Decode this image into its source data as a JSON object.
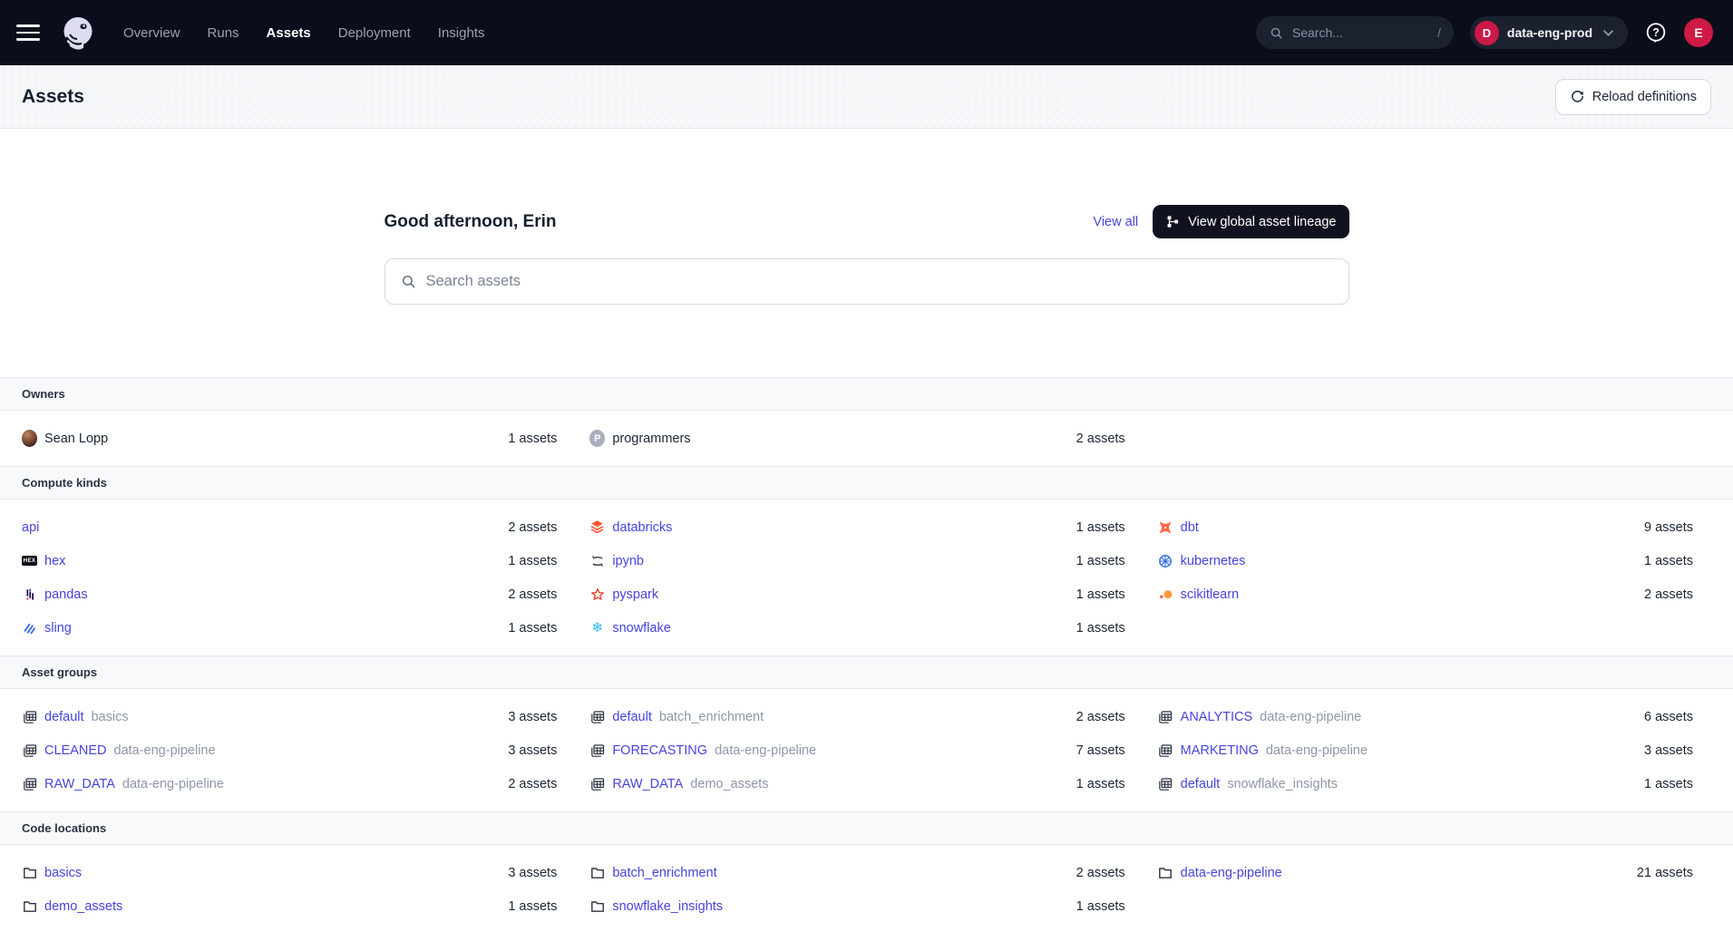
{
  "topnav": {
    "nav_items": [
      {
        "label": "Overview",
        "active": false
      },
      {
        "label": "Runs",
        "active": false
      },
      {
        "label": "Assets",
        "active": true
      },
      {
        "label": "Deployment",
        "active": false
      },
      {
        "label": "Insights",
        "active": false
      }
    ],
    "search_placeholder": "Search...",
    "search_shortcut": "/",
    "deployment": {
      "initial": "D",
      "name": "data-eng-prod"
    },
    "user_initial": "E"
  },
  "page_header": {
    "title": "Assets",
    "reload_button": "Reload definitions"
  },
  "hero": {
    "greeting": "Good afternoon, Erin",
    "view_all": "View all",
    "lineage_button": "View global asset lineage",
    "search_placeholder": "Search assets"
  },
  "colors": {
    "accent": "#4744DE",
    "nav_bg": "#0A0D1A",
    "badge_red": "#CB1A47",
    "count_text": "#1B2633",
    "snowflake_blue": "#29B5E8",
    "databricks_orange": "#FF5430",
    "dbt_orange": "#FF6A45",
    "kubernetes_blue": "#3371E3",
    "pyspark_red": "#E8492C",
    "scikit_orange": "#F89939",
    "sling_blue": "#3E6FD9"
  },
  "sections": [
    {
      "title": "Owners",
      "items": [
        {
          "icon": "user-photo",
          "label": "Sean Lopp",
          "suffix": "",
          "count": "1 assets",
          "link": false
        },
        {
          "icon": "team-badge",
          "badge": "P",
          "label": "programmers",
          "suffix": "",
          "count": "2 assets",
          "link": false
        }
      ]
    },
    {
      "title": "Compute kinds",
      "items": [
        {
          "icon": null,
          "label": "api",
          "suffix": "",
          "count": "2 assets",
          "link": true
        },
        {
          "icon": "databricks",
          "label": "databricks",
          "suffix": "",
          "count": "1 assets",
          "link": true
        },
        {
          "icon": "dbt",
          "label": "dbt",
          "suffix": "",
          "count": "9 assets",
          "link": true
        },
        {
          "icon": "hex",
          "label": "hex",
          "suffix": "",
          "count": "1 assets",
          "link": true
        },
        {
          "icon": "ipynb",
          "label": "ipynb",
          "suffix": "",
          "count": "1 assets",
          "link": true
        },
        {
          "icon": "kubernetes",
          "label": "kubernetes",
          "suffix": "",
          "count": "1 assets",
          "link": true
        },
        {
          "icon": "pandas",
          "label": "pandas",
          "suffix": "",
          "count": "2 assets",
          "link": true
        },
        {
          "icon": "pyspark",
          "label": "pyspark",
          "suffix": "",
          "count": "1 assets",
          "link": true
        },
        {
          "icon": "scikitlearn",
          "label": "scikitlearn",
          "suffix": "",
          "count": "2 assets",
          "link": true
        },
        {
          "icon": "sling",
          "label": "sling",
          "suffix": "",
          "count": "1 assets",
          "link": true
        },
        {
          "icon": "snowflake",
          "label": "snowflake",
          "suffix": "",
          "count": "1 assets",
          "link": true
        }
      ]
    },
    {
      "title": "Asset groups",
      "items": [
        {
          "icon": "table-grid",
          "label": "default",
          "suffix": "basics",
          "count": "3 assets",
          "link": true
        },
        {
          "icon": "table-grid",
          "label": "default",
          "suffix": "batch_enrichment",
          "count": "2 assets",
          "link": true
        },
        {
          "icon": "table-grid",
          "label": "ANALYTICS",
          "suffix": "data-eng-pipeline",
          "count": "6 assets",
          "link": true
        },
        {
          "icon": "table-grid",
          "label": "CLEANED",
          "suffix": "data-eng-pipeline",
          "count": "3 assets",
          "link": true
        },
        {
          "icon": "table-grid",
          "label": "FORECASTING",
          "suffix": "data-eng-pipeline",
          "count": "7 assets",
          "link": true
        },
        {
          "icon": "table-grid",
          "label": "MARKETING",
          "suffix": "data-eng-pipeline",
          "count": "3 assets",
          "link": true
        },
        {
          "icon": "table-grid",
          "label": "RAW_DATA",
          "suffix": "data-eng-pipeline",
          "count": "2 assets",
          "link": true
        },
        {
          "icon": "table-grid",
          "label": "RAW_DATA",
          "suffix": "demo_assets",
          "count": "1 assets",
          "link": true
        },
        {
          "icon": "table-grid",
          "label": "default",
          "suffix": "snowflake_insights",
          "count": "1 assets",
          "link": true
        }
      ]
    },
    {
      "title": "Code locations",
      "items": [
        {
          "icon": "folder",
          "label": "basics",
          "suffix": "",
          "count": "3 assets",
          "link": true
        },
        {
          "icon": "folder",
          "label": "batch_enrichment",
          "suffix": "",
          "count": "2 assets",
          "link": true
        },
        {
          "icon": "folder",
          "label": "data-eng-pipeline",
          "suffix": "",
          "count": "21 assets",
          "link": true
        },
        {
          "icon": "folder",
          "label": "demo_assets",
          "suffix": "",
          "count": "1 assets",
          "link": true
        },
        {
          "icon": "folder",
          "label": "snowflake_insights",
          "suffix": "",
          "count": "1 assets",
          "link": true
        }
      ]
    }
  ]
}
